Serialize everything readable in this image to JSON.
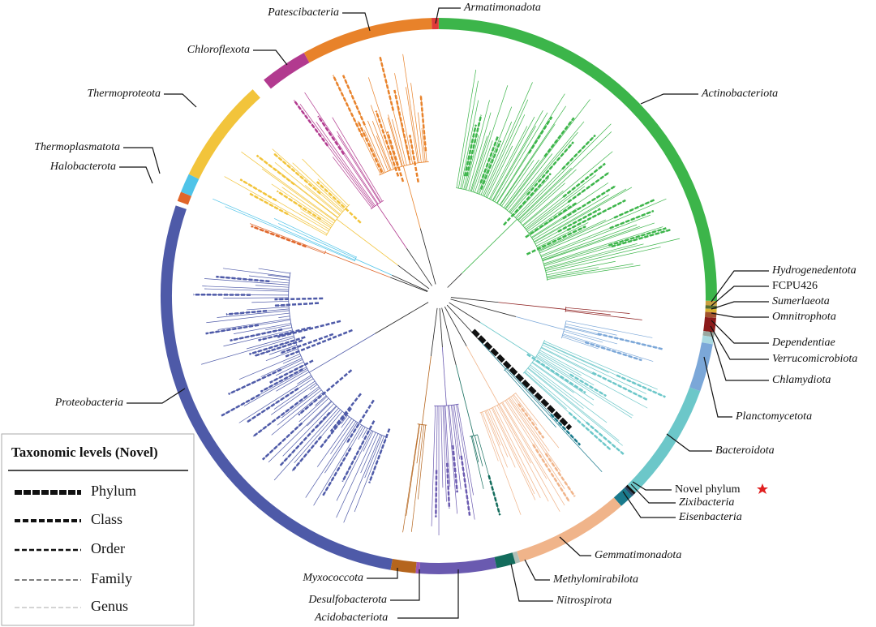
{
  "phyla": [
    "Armatimonadota",
    "Actinobacteriota",
    "Hydrogenedentota",
    "FCPU426",
    "Sumerlaeota",
    "Omnitrophota",
    "Dependentiae",
    "Verrucomicrobiota",
    "Chlamydiota",
    "Planctomycetota",
    "Bacteroidota",
    "Novel phylum",
    "Zixibacteria",
    "Eisenbacteria",
    "Gemmatimonadota",
    "Methylomirabilota",
    "Nitrospirota",
    "Acidobacteriota",
    "Desulfobacterota",
    "Myxococcota",
    "Proteobacteria",
    "Halobacterota",
    "Thermoplasmatota",
    "Thermoproteota",
    "Chloroflexota",
    "Patescibacteria"
  ],
  "legend": {
    "title": "Taxonomic levels (Novel)",
    "items": [
      "Phylum",
      "Class",
      "Order",
      "Family",
      "Genus"
    ]
  }
}
